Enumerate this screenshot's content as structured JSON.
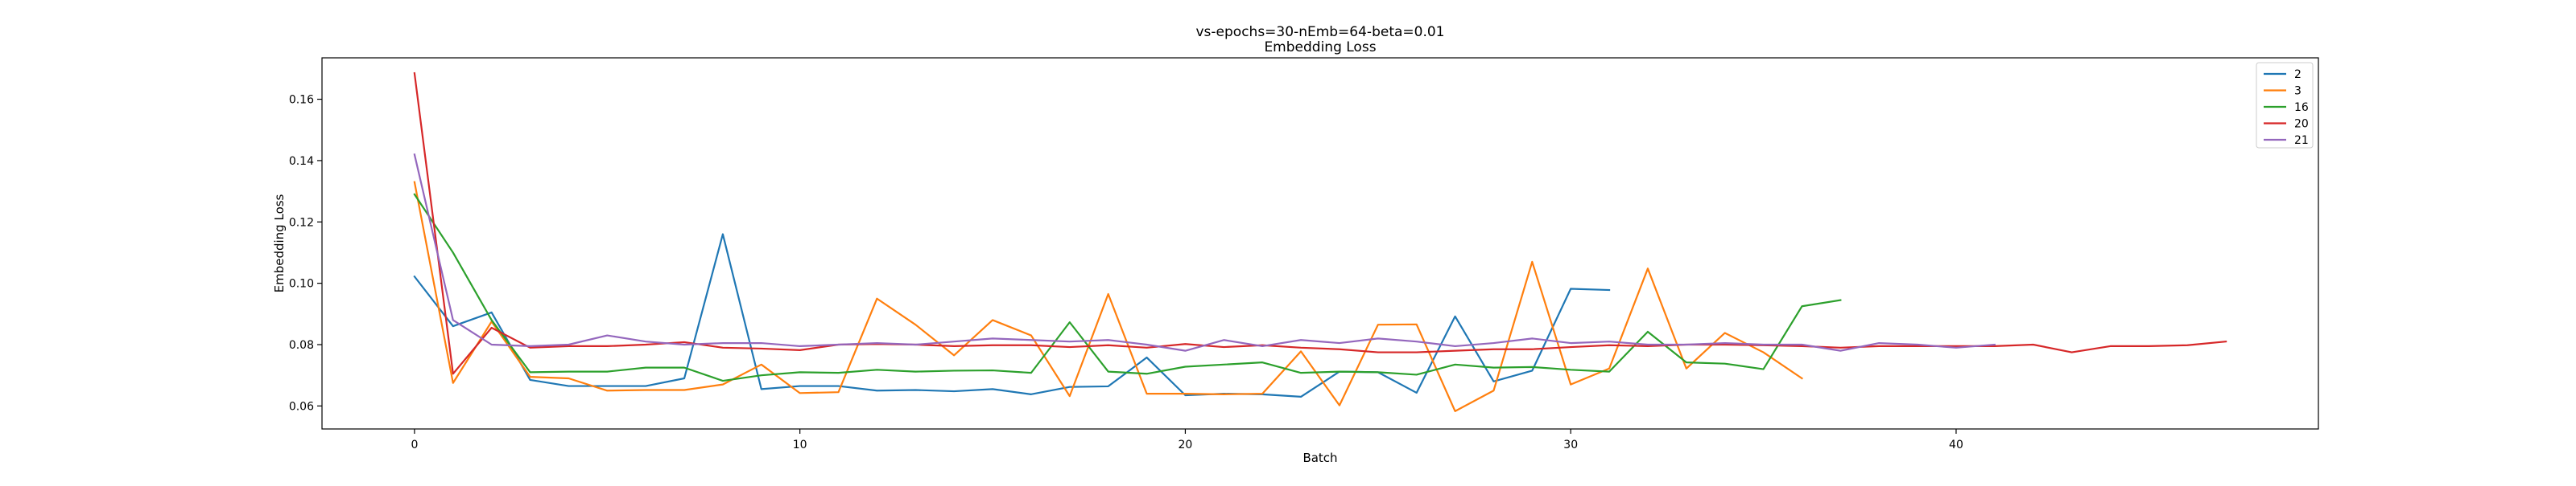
{
  "chart_data": {
    "type": "line",
    "title": "vs-epochs=30-nEmb=64-beta=0.01",
    "subtitle": "Embedding Loss",
    "xlabel": "Batch",
    "ylabel": "Embedding Loss",
    "xlim": [
      -2.4,
      49.4
    ],
    "ylim": [
      0.0525,
      0.1735
    ],
    "xticks": [
      0,
      10,
      20,
      30,
      40
    ],
    "yticks": [
      0.06,
      0.08,
      0.1,
      0.12,
      0.14,
      0.16
    ],
    "ytick_labels": [
      "0.06",
      "0.08",
      "0.10",
      "0.12",
      "0.14",
      "0.16"
    ],
    "grid": false,
    "legend_position": "top-right",
    "series": [
      {
        "name": "2",
        "color": "#1f77b4",
        "values": [
          0.1022,
          0.086,
          0.0905,
          0.0685,
          0.0665,
          0.0665,
          0.0665,
          0.069,
          0.116,
          0.0655,
          0.0665,
          0.0665,
          0.065,
          0.0652,
          0.0648,
          0.0655,
          0.0638,
          0.0662,
          0.0664,
          0.0758,
          0.0635,
          0.064,
          0.0638,
          0.063,
          0.0712,
          0.071,
          0.0643,
          0.0892,
          0.068,
          0.0715,
          0.0982,
          0.0978
        ]
      },
      {
        "name": "3",
        "color": "#ff7f0e",
        "values": [
          0.133,
          0.0675,
          0.0875,
          0.0695,
          0.069,
          0.065,
          0.0652,
          0.0652,
          0.067,
          0.0735,
          0.0642,
          0.0645,
          0.095,
          0.0865,
          0.0765,
          0.088,
          0.083,
          0.0632,
          0.0965,
          0.064,
          0.064,
          0.0638,
          0.064,
          0.0778,
          0.0602,
          0.0865,
          0.0866,
          0.0583,
          0.065,
          0.107,
          0.067,
          0.0722,
          0.1048,
          0.0722,
          0.0838,
          0.0775,
          0.069
        ]
      },
      {
        "name": "16",
        "color": "#2ca02c",
        "values": [
          0.129,
          0.11,
          0.088,
          0.071,
          0.0712,
          0.0712,
          0.0725,
          0.0725,
          0.0682,
          0.07,
          0.071,
          0.0708,
          0.0718,
          0.0712,
          0.0715,
          0.0716,
          0.0708,
          0.0873,
          0.0712,
          0.0705,
          0.0728,
          0.0735,
          0.0742,
          0.0708,
          0.0712,
          0.071,
          0.0702,
          0.0735,
          0.0725,
          0.0727,
          0.0718,
          0.0712,
          0.0842,
          0.0742,
          0.0738,
          0.072,
          0.0925,
          0.0945
        ]
      },
      {
        "name": "20",
        "color": "#d62728",
        "values": [
          0.1685,
          0.0705,
          0.0855,
          0.079,
          0.0795,
          0.0795,
          0.08,
          0.0808,
          0.079,
          0.0787,
          0.0782,
          0.08,
          0.0802,
          0.08,
          0.0795,
          0.0798,
          0.0798,
          0.0792,
          0.0798,
          0.079,
          0.0802,
          0.0792,
          0.0798,
          0.079,
          0.0785,
          0.0775,
          0.0775,
          0.078,
          0.0785,
          0.0785,
          0.0792,
          0.0798,
          0.0795,
          0.08,
          0.08,
          0.0798,
          0.0795,
          0.079,
          0.0795,
          0.0795,
          0.0795,
          0.0795,
          0.08,
          0.0775,
          0.0795,
          0.0795,
          0.0798,
          0.081
        ]
      },
      {
        "name": "21",
        "color": "#9467bd",
        "values": [
          0.142,
          0.088,
          0.08,
          0.0795,
          0.08,
          0.083,
          0.081,
          0.08,
          0.0805,
          0.0805,
          0.0795,
          0.08,
          0.0805,
          0.08,
          0.081,
          0.082,
          0.0815,
          0.081,
          0.0815,
          0.08,
          0.078,
          0.0815,
          0.0795,
          0.0815,
          0.0805,
          0.082,
          0.081,
          0.0795,
          0.0805,
          0.082,
          0.0805,
          0.081,
          0.08,
          0.08,
          0.0805,
          0.08,
          0.08,
          0.078,
          0.0805,
          0.08,
          0.079,
          0.08
        ]
      }
    ]
  }
}
